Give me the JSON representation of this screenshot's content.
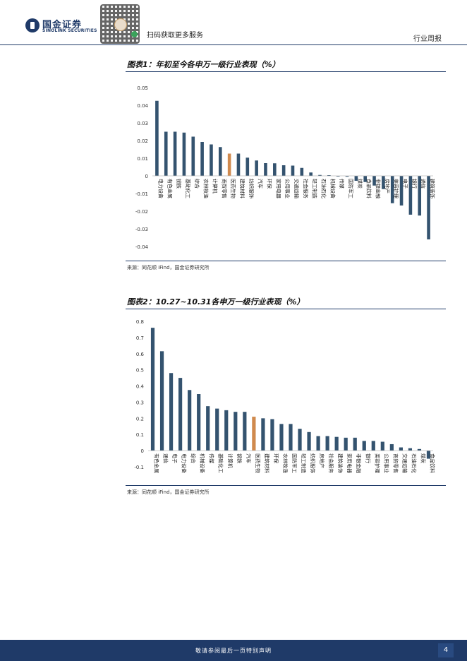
{
  "header": {
    "logo_cn": "国金证券",
    "logo_en": "SINOLINK SECURITIES",
    "qr_caption": "扫码获取更多服务",
    "report_type": "行业周报"
  },
  "charts": [
    {
      "title": "图表1：年初至今各申万一级行业表现（%）",
      "source": "来源：同花顺 iFind，国金证券研究所"
    },
    {
      "title": "图表2：10.27~10.31各申万一级行业表现（%）",
      "source": "来源：同花顺 iFind，国金证券研究所"
    }
  ],
  "chart_data": [
    {
      "type": "bar",
      "title": "图表1：年初至今各申万一级行业表现（%）",
      "categories": [
        "电力设备",
        "有色金属",
        "钢铁",
        "基础化工",
        "综合",
        "农林牧渔",
        "计算机",
        "商贸零售",
        "医药生物",
        "建筑材料",
        "纺织服饰",
        "汽车",
        "环保",
        "家用电器",
        "公用事业",
        "交通运输",
        "社会服务",
        "轻工制造",
        "石油石化",
        "机械设备",
        "传媒",
        "国防军工",
        "煤炭",
        "食品饮料",
        "非银金融",
        "房地产",
        "美容护理",
        "电子",
        "银行",
        "通信",
        "建筑装饰"
      ],
      "values": [
        0.0425,
        0.025,
        0.025,
        0.0245,
        0.0222,
        0.0192,
        0.0178,
        0.0163,
        0.0126,
        0.0126,
        0.0103,
        0.0087,
        0.0072,
        0.0071,
        0.006,
        0.0058,
        0.0045,
        0.0019,
        0.0005,
        0.0004,
        -0.0004,
        -0.0005,
        -0.0028,
        -0.0035,
        -0.0055,
        -0.0075,
        -0.0155,
        -0.0168,
        -0.022,
        -0.0225,
        -0.036
      ],
      "highlight": "医药生物",
      "ylim": [
        -0.04,
        0.05
      ],
      "yticks": [
        "0.05",
        "0.04",
        "0.03",
        "0.02",
        "0.01",
        "0",
        "-0.01",
        "-0.02",
        "-0.03",
        "-0.04"
      ],
      "ytick_values": [
        0.05,
        0.04,
        0.03,
        0.02,
        0.01,
        0,
        -0.01,
        -0.02,
        -0.03,
        -0.04
      ],
      "colors": {
        "bar": "#34536f",
        "highlight": "#d08a4e"
      },
      "grid": false
    },
    {
      "type": "bar",
      "title": "图表2：10.27~10.31各申万一级行业表现（%）",
      "categories": [
        "有色金属",
        "通信",
        "电子",
        "电力设备",
        "综合",
        "机械设备",
        "传媒",
        "基础化工",
        "计算机",
        "钢铁",
        "汽车",
        "医药生物",
        "建筑材料",
        "环保",
        "农林牧渔",
        "国防军工",
        "轻工制造",
        "纺织服饰",
        "房地产",
        "社会服务",
        "建筑装饰",
        "家用电器",
        "非银金融",
        "银行",
        "美容护理",
        "公用事业",
        "商贸零售",
        "交通运输",
        "石油石化",
        "煤炭",
        "食品饮料"
      ],
      "values": [
        0.76,
        0.615,
        0.48,
        0.45,
        0.375,
        0.35,
        0.275,
        0.26,
        0.25,
        0.24,
        0.24,
        0.21,
        0.2,
        0.195,
        0.165,
        0.165,
        0.135,
        0.115,
        0.09,
        0.09,
        0.085,
        0.08,
        0.08,
        0.06,
        0.06,
        0.055,
        0.04,
        0.02,
        0.015,
        0.01,
        -0.05
      ],
      "highlight": "医药生物",
      "ylim": [
        -0.1,
        0.8
      ],
      "yticks": [
        "0.8",
        "0.7",
        "0.6",
        "0.5",
        "0.4",
        "0.3",
        "0.2",
        "0.1",
        "0",
        "-0.1"
      ],
      "ytick_values": [
        0.8,
        0.7,
        0.6,
        0.5,
        0.4,
        0.3,
        0.2,
        0.1,
        0,
        -0.1
      ],
      "colors": {
        "bar": "#34536f",
        "highlight": "#d08a4e"
      },
      "grid": false
    }
  ],
  "footer": {
    "disclaimer": "敬请参阅最后一页特别声明",
    "page": "4"
  }
}
